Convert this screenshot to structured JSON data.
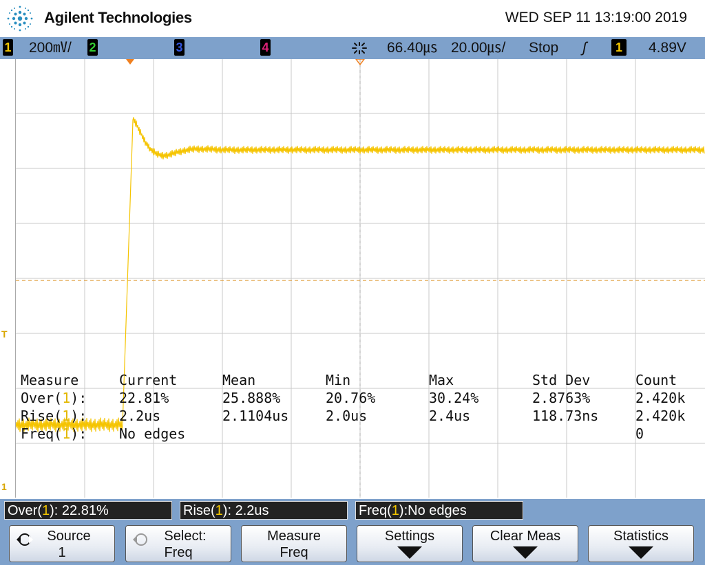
{
  "header": {
    "brand": "Agilent Technologies",
    "datetime": "WED SEP 11 13:19:00 2019"
  },
  "status_bar": {
    "ch1": "1",
    "ch1_scale": "200㎷/",
    "ch2": "2",
    "ch3": "3",
    "ch4": "4",
    "h_delay": "66.40㎲",
    "h_scale": "20.00㎲/",
    "run_state": "Stop",
    "trig_slope": "ʃ",
    "trig_source": "1",
    "trig_level": "4.89V",
    "colors": {
      "ch1": "#f5c800",
      "ch2": "#33cc33",
      "ch3": "#3355dd",
      "ch4": "#dd2277"
    }
  },
  "measurements": {
    "headers": [
      "Measure",
      "Current",
      "Mean",
      "Min",
      "Max",
      "Std Dev",
      "Count"
    ],
    "rows": [
      {
        "name": "Over(",
        "ch": "1",
        "close": "):",
        "current": "22.81%",
        "mean": "25.888%",
        "min": "20.76%",
        "max": "30.24%",
        "stddev": "2.8763%",
        "count": "2.420k"
      },
      {
        "name": "Rise(",
        "ch": "1",
        "close": "):",
        "current": "2.2us",
        "mean": "2.1104us",
        "min": "2.0us",
        "max": "2.4us",
        "stddev": "118.73ns",
        "count": "2.420k"
      },
      {
        "name": "Freq(",
        "ch": "1",
        "close": "):",
        "current": "No edges",
        "mean": "",
        "min": "",
        "max": "",
        "stddev": "",
        "count": "0"
      }
    ]
  },
  "markers": {
    "trigger": "T",
    "ground": "1"
  },
  "readouts": [
    {
      "pre": "Over(",
      "ch": "1",
      "post": "): 22.81%"
    },
    {
      "pre": "Rise(",
      "ch": "1",
      "post": "): 2.2us"
    },
    {
      "pre": "Freq(",
      "ch": "1",
      "post": "):No edges"
    }
  ],
  "softkeys": [
    {
      "line1": "Source",
      "line2": "1",
      "icon": "rotate-knob-icon"
    },
    {
      "line1": "Select:",
      "line2": "Freq",
      "icon": "rotate-knob-disabled-icon"
    },
    {
      "line1": "Measure",
      "line2": "Freq",
      "icon": ""
    },
    {
      "line1": "Settings",
      "line2": "",
      "icon": "down-arrow-icon"
    },
    {
      "line1": "Clear Meas",
      "line2": "",
      "icon": "down-arrow-icon"
    },
    {
      "line1": "Statistics",
      "line2": "",
      "icon": "down-arrow-icon"
    }
  ]
}
